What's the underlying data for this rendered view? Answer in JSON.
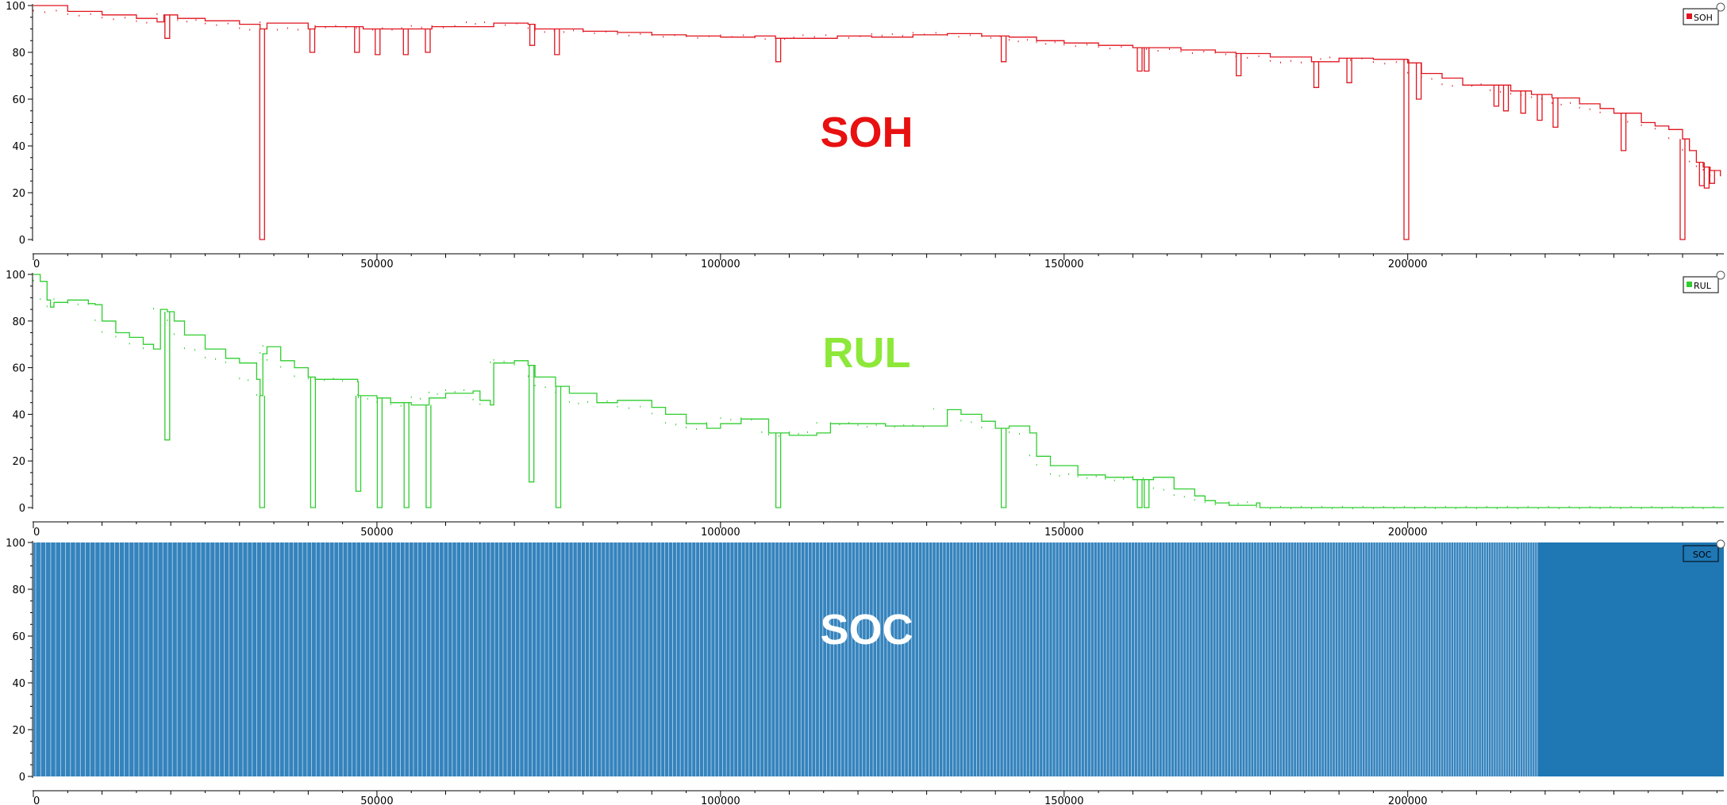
{
  "chart_data": [
    {
      "type": "line",
      "title": "SOH",
      "legend": {
        "label": "SOH",
        "placement": "top-right"
      },
      "color": "#e0141e",
      "title_color": "#e81010",
      "xlim": [
        0,
        246000
      ],
      "ylim": [
        0,
        100
      ],
      "x_ticks": [
        0,
        50000,
        100000,
        150000,
        200000
      ],
      "y_ticks": [
        0,
        20,
        40,
        60,
        80,
        100
      ],
      "series": [
        {
          "values": [
            [
              0,
              100
            ],
            [
              5000,
              97.5
            ],
            [
              10000,
              96
            ],
            [
              15000,
              94.5
            ],
            [
              18000,
              93
            ],
            [
              19000,
              96
            ],
            [
              21000,
              94.5
            ],
            [
              25000,
              93.5
            ],
            [
              30000,
              92
            ],
            [
              33000,
              90
            ],
            [
              34000,
              92.5
            ],
            [
              40000,
              90
            ],
            [
              41000,
              91
            ],
            [
              47000,
              91
            ],
            [
              48000,
              90
            ],
            [
              55000,
              90
            ],
            [
              58000,
              91
            ],
            [
              63000,
              91
            ],
            [
              67000,
              92.5
            ],
            [
              72000,
              92
            ],
            [
              73000,
              90
            ],
            [
              80000,
              89
            ],
            [
              85000,
              88.5
            ],
            [
              90000,
              87.5
            ],
            [
              95000,
              87
            ],
            [
              100000,
              86.5
            ],
            [
              105000,
              87
            ],
            [
              108000,
              86
            ],
            [
              112000,
              86
            ],
            [
              117000,
              87
            ],
            [
              122000,
              86.5
            ],
            [
              128000,
              87.5
            ],
            [
              133000,
              88
            ],
            [
              138000,
              87
            ],
            [
              142000,
              86.5
            ],
            [
              146000,
              85
            ],
            [
              150000,
              84
            ],
            [
              155000,
              83
            ],
            [
              160000,
              82
            ],
            [
              162000,
              82
            ],
            [
              167000,
              81
            ],
            [
              172000,
              80
            ],
            [
              175000,
              79.5
            ],
            [
              180000,
              78
            ],
            [
              186000,
              76
            ],
            [
              190000,
              77.5
            ],
            [
              195000,
              77
            ],
            [
              200000,
              75.5
            ],
            [
              202000,
              71
            ],
            [
              205000,
              69
            ],
            [
              208000,
              66
            ],
            [
              212000,
              66
            ],
            [
              215000,
              63.5
            ],
            [
              218000,
              62
            ],
            [
              221000,
              60.5
            ],
            [
              225000,
              58
            ],
            [
              228000,
              56
            ],
            [
              230000,
              54
            ],
            [
              232000,
              54
            ],
            [
              234000,
              50
            ],
            [
              236000,
              48.5
            ],
            [
              238000,
              47
            ],
            [
              240000,
              43
            ],
            [
              241000,
              38
            ],
            [
              242000,
              33
            ],
            [
              243000,
              31
            ],
            [
              244000,
              29.5
            ],
            [
              245500,
              27
            ]
          ],
          "dips": [
            [
              19500,
              86
            ],
            [
              33300,
              0
            ],
            [
              40600,
              80
            ],
            [
              47100,
              80
            ],
            [
              50100,
              79
            ],
            [
              54200,
              79
            ],
            [
              57400,
              80
            ],
            [
              72600,
              83
            ],
            [
              76200,
              79
            ],
            [
              108400,
              76
            ],
            [
              141200,
              76
            ],
            [
              161000,
              72
            ],
            [
              162000,
              72
            ],
            [
              175400,
              70
            ],
            [
              186700,
              65
            ],
            [
              191500,
              67
            ],
            [
              199800,
              0
            ],
            [
              201600,
              60
            ],
            [
              212900,
              57
            ],
            [
              214300,
              55
            ],
            [
              216800,
              54
            ],
            [
              219200,
              51
            ],
            [
              221500,
              48
            ],
            [
              231400,
              38
            ],
            [
              240000,
              0
            ],
            [
              242800,
              23
            ],
            [
              243500,
              22
            ],
            [
              244300,
              24
            ]
          ]
        }
      ]
    },
    {
      "type": "line",
      "title": "RUL",
      "legend": {
        "label": "RUL",
        "placement": "top-right"
      },
      "color": "#2fce2f",
      "title_color": "#8de83a",
      "xlim": [
        0,
        246000
      ],
      "ylim": [
        0,
        100
      ],
      "x_ticks": [
        0,
        50000,
        100000,
        150000,
        200000
      ],
      "y_ticks": [
        0,
        20,
        40,
        60,
        80,
        100
      ],
      "series": [
        {
          "values": [
            [
              0,
              100
            ],
            [
              1000,
              97
            ],
            [
              2000,
              89
            ],
            [
              2500,
              86
            ],
            [
              3000,
              88
            ],
            [
              5000,
              89
            ],
            [
              8000,
              87.5
            ],
            [
              9000,
              87
            ],
            [
              10000,
              80
            ],
            [
              12000,
              75
            ],
            [
              14000,
              73
            ],
            [
              16000,
              70
            ],
            [
              17500,
              68
            ],
            [
              18500,
              85
            ],
            [
              19500,
              84
            ],
            [
              20500,
              80
            ],
            [
              22000,
              74
            ],
            [
              25000,
              68
            ],
            [
              28000,
              64
            ],
            [
              30000,
              62
            ],
            [
              32500,
              55
            ],
            [
              33000,
              48
            ],
            [
              33400,
              66
            ],
            [
              34000,
              69
            ],
            [
              36000,
              63
            ],
            [
              38000,
              60
            ],
            [
              40000,
              56
            ],
            [
              41000,
              55
            ],
            [
              45000,
              55
            ],
            [
              47200,
              54
            ],
            [
              47300,
              48
            ],
            [
              50000,
              47
            ],
            [
              52000,
              45
            ],
            [
              55000,
              44
            ],
            [
              57600,
              47
            ],
            [
              60000,
              49
            ],
            [
              64000,
              50
            ],
            [
              65000,
              46
            ],
            [
              66500,
              44
            ],
            [
              67000,
              62
            ],
            [
              70000,
              63
            ],
            [
              72000,
              61
            ],
            [
              73000,
              56
            ],
            [
              76000,
              52
            ],
            [
              78000,
              49
            ],
            [
              82000,
              45
            ],
            [
              85000,
              46
            ],
            [
              90000,
              43
            ],
            [
              92000,
              40
            ],
            [
              95000,
              36
            ],
            [
              98000,
              34
            ],
            [
              100000,
              36
            ],
            [
              103000,
              38
            ],
            [
              106000,
              38
            ],
            [
              107000,
              32
            ],
            [
              110000,
              31
            ],
            [
              114000,
              32
            ],
            [
              116000,
              36
            ],
            [
              120000,
              36
            ],
            [
              124000,
              35
            ],
            [
              128000,
              35
            ],
            [
              131000,
              35
            ],
            [
              133000,
              42
            ],
            [
              135000,
              40
            ],
            [
              138000,
              37
            ],
            [
              140000,
              34
            ],
            [
              142000,
              35
            ],
            [
              145000,
              32
            ],
            [
              146000,
              22
            ],
            [
              148000,
              18
            ],
            [
              152000,
              14
            ],
            [
              156000,
              13
            ],
            [
              160000,
              12
            ],
            [
              163000,
              13
            ],
            [
              166000,
              8
            ],
            [
              169000,
              5
            ],
            [
              170500,
              3
            ],
            [
              172000,
              2
            ],
            [
              174000,
              1
            ],
            [
              178000,
              2
            ],
            [
              178500,
              0
            ],
            [
              246000,
              0
            ]
          ],
          "dips": [
            [
              19500,
              29
            ],
            [
              33300,
              0
            ],
            [
              40700,
              0
            ],
            [
              47300,
              7
            ],
            [
              50400,
              0
            ],
            [
              54300,
              0
            ],
            [
              57500,
              0
            ],
            [
              72500,
              11
            ],
            [
              76400,
              0
            ],
            [
              108400,
              0
            ],
            [
              141200,
              0
            ],
            [
              161000,
              0
            ],
            [
              162000,
              0
            ]
          ]
        }
      ]
    },
    {
      "type": "area",
      "title": "SOC",
      "legend": {
        "label": "SOC",
        "placement": "top-right"
      },
      "color": "#1f77b4",
      "title_color": "#ffffff",
      "xlim": [
        0,
        246000
      ],
      "ylim": [
        0,
        100
      ],
      "x_ticks": [
        0,
        50000,
        100000,
        150000,
        200000
      ],
      "y_ticks": [
        0,
        20,
        40,
        60,
        80,
        100
      ],
      "cycling": {
        "min": 0,
        "max": 100,
        "dense_after_x": 219000
      }
    }
  ]
}
